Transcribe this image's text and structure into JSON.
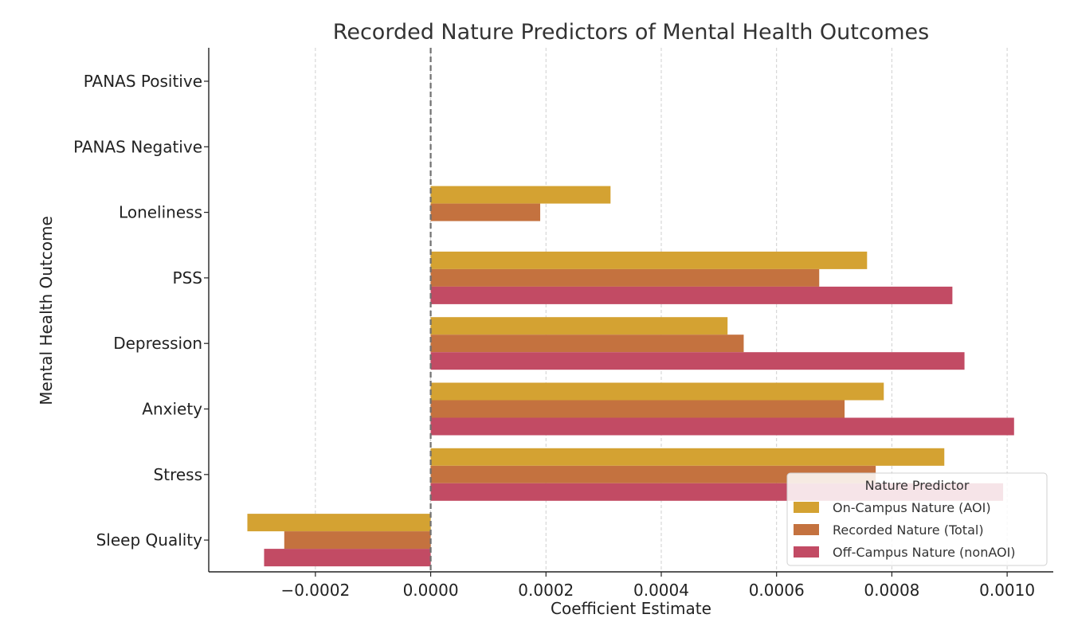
{
  "chart_data": {
    "type": "bar",
    "orientation": "horizontal",
    "title": "Recorded Nature Predictors of Mental Health Outcomes",
    "xlabel": "Coefficient Estimate",
    "ylabel": "Mental Health Outcome",
    "xlim": [
      -0.000385,
      0.00108
    ],
    "x_ticks": [
      "-0.0002",
      "0.0000",
      "0.0002",
      "0.0004",
      "0.0006",
      "0.0008",
      "0.0010"
    ],
    "x_tick_values": [
      -0.0002,
      0.0,
      0.0002,
      0.0004,
      0.0006,
      0.0008,
      0.001
    ],
    "categories": [
      "PANAS Positive",
      "PANAS Negative",
      "Loneliness",
      "PSS",
      "Depression",
      "Anxiety",
      "Stress",
      "Sleep Quality"
    ],
    "grid": "vertical dashed",
    "reference_line": 0,
    "legend": {
      "title": "Nature Predictor",
      "position": "lower-right"
    },
    "series": [
      {
        "name": "On-Campus Nature (AOI)",
        "color": "#d4a232",
        "values": [
          null,
          null,
          0.000312,
          0.000757,
          0.000515,
          0.000786,
          0.000891,
          -0.000318
        ]
      },
      {
        "name": "Recorded Nature (Total)",
        "color": "#c4723f",
        "values": [
          null,
          null,
          0.00019,
          0.000674,
          0.000543,
          0.000718,
          0.000772,
          -0.000254
        ]
      },
      {
        "name": "Off-Campus Nature (nonAOI)",
        "color": "#c24b64",
        "values": [
          null,
          null,
          null,
          0.000905,
          0.000926,
          0.001012,
          0.000993,
          -0.000289
        ]
      }
    ]
  }
}
